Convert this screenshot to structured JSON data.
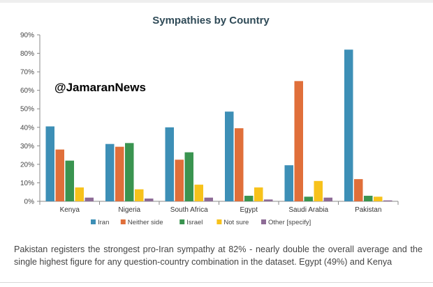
{
  "page": {
    "watermark": "@JamaranNews",
    "caption": "Pakistan registers the strongest pro-Iran sympathy at 82% - nearly double the overall average and the single highest figure for any question-country combination in the dataset. Egypt (49%) and Kenya"
  },
  "chart_data": {
    "type": "bar",
    "title": "Sympathies by Country",
    "xlabel": "",
    "ylabel": "",
    "ylim": [
      0,
      90
    ],
    "yticks": [
      0,
      10,
      20,
      30,
      40,
      50,
      60,
      70,
      80,
      90
    ],
    "ytick_labels": [
      "0%",
      "10%",
      "20%",
      "30%",
      "40%",
      "50%",
      "60%",
      "70%",
      "80%",
      "90%"
    ],
    "grid": false,
    "legend_position": "bottom",
    "categories": [
      "Kenya",
      "Nigeria",
      "South Africa",
      "Egypt",
      "Saudi Arabia",
      "Pakistan"
    ],
    "series": [
      {
        "name": "Iran",
        "color": "#3d8fb6",
        "values": [
          40.5,
          31,
          40,
          48.5,
          19.5,
          82
        ]
      },
      {
        "name": "Neither side",
        "color": "#e06f3a",
        "values": [
          28,
          29.5,
          22.5,
          39.5,
          65,
          12
        ]
      },
      {
        "name": "Israel",
        "color": "#3a9450",
        "values": [
          22,
          31.5,
          26.5,
          3,
          2.5,
          3
        ]
      },
      {
        "name": "Not sure",
        "color": "#f7c21b",
        "values": [
          7.5,
          6.5,
          9,
          7.5,
          11,
          2.5
        ]
      },
      {
        "name": "Other [specify]",
        "color": "#8d6b96",
        "values": [
          2,
          1.5,
          2,
          1,
          2,
          0.5
        ]
      }
    ]
  }
}
